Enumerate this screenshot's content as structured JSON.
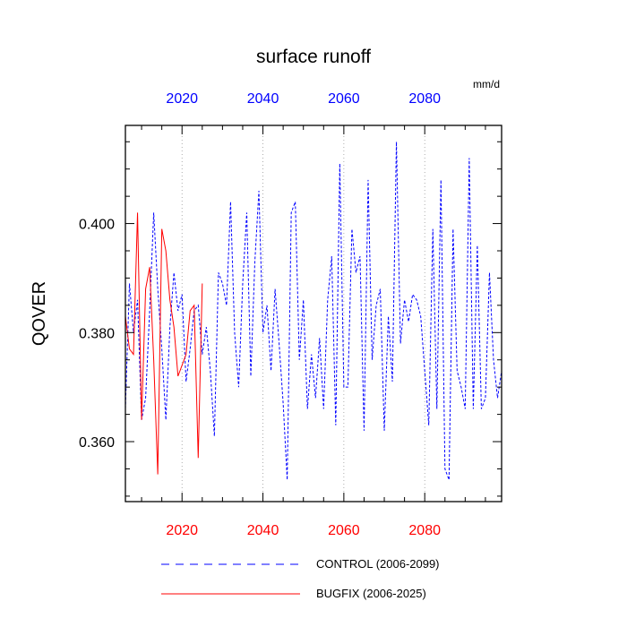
{
  "chart_data": {
    "type": "line",
    "title": "surface runoff",
    "units_label": "mm/d",
    "ylabel": "QOVER",
    "xlabel": "",
    "xlim": [
      2006,
      2099
    ],
    "ylim": [
      0.349,
      0.418
    ],
    "ytick_values": [
      0.36,
      0.38,
      0.4
    ],
    "ytick_labels": [
      "0.360",
      "0.380",
      "0.400"
    ],
    "xtick_values": [
      2020,
      2040,
      2060,
      2080
    ],
    "xtick_labels_bottom": [
      "2020",
      "2040",
      "2060",
      "2080"
    ],
    "xtick_labels_top": [
      "2020",
      "2040",
      "2060",
      "2080"
    ],
    "colors": {
      "bottom_axis_labels": "#ff0000",
      "top_axis_labels": "#0000ff",
      "control": "#0000ff",
      "bugfix": "#ff0000"
    },
    "legend_position": "bottom",
    "grid": "vertical dotted at major x ticks",
    "series": [
      {
        "name": "CONTROL (2006-2099)",
        "style": "dashed",
        "color": "#0000ff",
        "x": [
          2006,
          2007,
          2008,
          2009,
          2010,
          2011,
          2012,
          2013,
          2014,
          2015,
          2016,
          2017,
          2018,
          2019,
          2020,
          2021,
          2022,
          2023,
          2024,
          2025,
          2026,
          2027,
          2028,
          2029,
          2030,
          2031,
          2032,
          2033,
          2034,
          2035,
          2036,
          2037,
          2038,
          2039,
          2040,
          2041,
          2042,
          2043,
          2044,
          2045,
          2046,
          2047,
          2048,
          2049,
          2050,
          2051,
          2052,
          2053,
          2054,
          2055,
          2056,
          2057,
          2058,
          2059,
          2060,
          2061,
          2062,
          2063,
          2064,
          2065,
          2066,
          2067,
          2068,
          2069,
          2070,
          2071,
          2072,
          2073,
          2074,
          2075,
          2076,
          2077,
          2078,
          2079,
          2080,
          2081,
          2082,
          2083,
          2084,
          2085,
          2086,
          2087,
          2088,
          2089,
          2090,
          2091,
          2092,
          2093,
          2094,
          2095,
          2096,
          2097,
          2098,
          2099
        ],
        "values": [
          0.366,
          0.389,
          0.38,
          0.386,
          0.364,
          0.368,
          0.384,
          0.402,
          0.388,
          0.377,
          0.364,
          0.381,
          0.391,
          0.384,
          0.387,
          0.371,
          0.377,
          0.384,
          0.385,
          0.376,
          0.381,
          0.373,
          0.361,
          0.391,
          0.389,
          0.385,
          0.404,
          0.38,
          0.37,
          0.389,
          0.402,
          0.372,
          0.393,
          0.406,
          0.38,
          0.385,
          0.373,
          0.388,
          0.378,
          0.367,
          0.353,
          0.402,
          0.404,
          0.375,
          0.386,
          0.366,
          0.376,
          0.368,
          0.379,
          0.366,
          0.386,
          0.394,
          0.363,
          0.411,
          0.37,
          0.37,
          0.399,
          0.391,
          0.394,
          0.362,
          0.408,
          0.375,
          0.385,
          0.388,
          0.362,
          0.383,
          0.371,
          0.415,
          0.378,
          0.386,
          0.382,
          0.387,
          0.386,
          0.383,
          0.373,
          0.363,
          0.399,
          0.366,
          0.408,
          0.355,
          0.353,
          0.399,
          0.373,
          0.37,
          0.366,
          0.412,
          0.366,
          0.396,
          0.366,
          0.368,
          0.391,
          0.375,
          0.368,
          0.373
        ]
      },
      {
        "name": "BUGFIX (2006-2025)",
        "style": "solid",
        "color": "#ff0000",
        "x": [
          2006,
          2007,
          2008,
          2009,
          2010,
          2011,
          2012,
          2013,
          2014,
          2015,
          2016,
          2017,
          2018,
          2019,
          2020,
          2021,
          2022,
          2023,
          2024,
          2025
        ],
        "values": [
          0.383,
          0.377,
          0.376,
          0.402,
          0.364,
          0.388,
          0.392,
          0.375,
          0.354,
          0.399,
          0.395,
          0.386,
          0.381,
          0.372,
          0.374,
          0.376,
          0.384,
          0.385,
          0.357,
          0.389
        ]
      }
    ]
  }
}
